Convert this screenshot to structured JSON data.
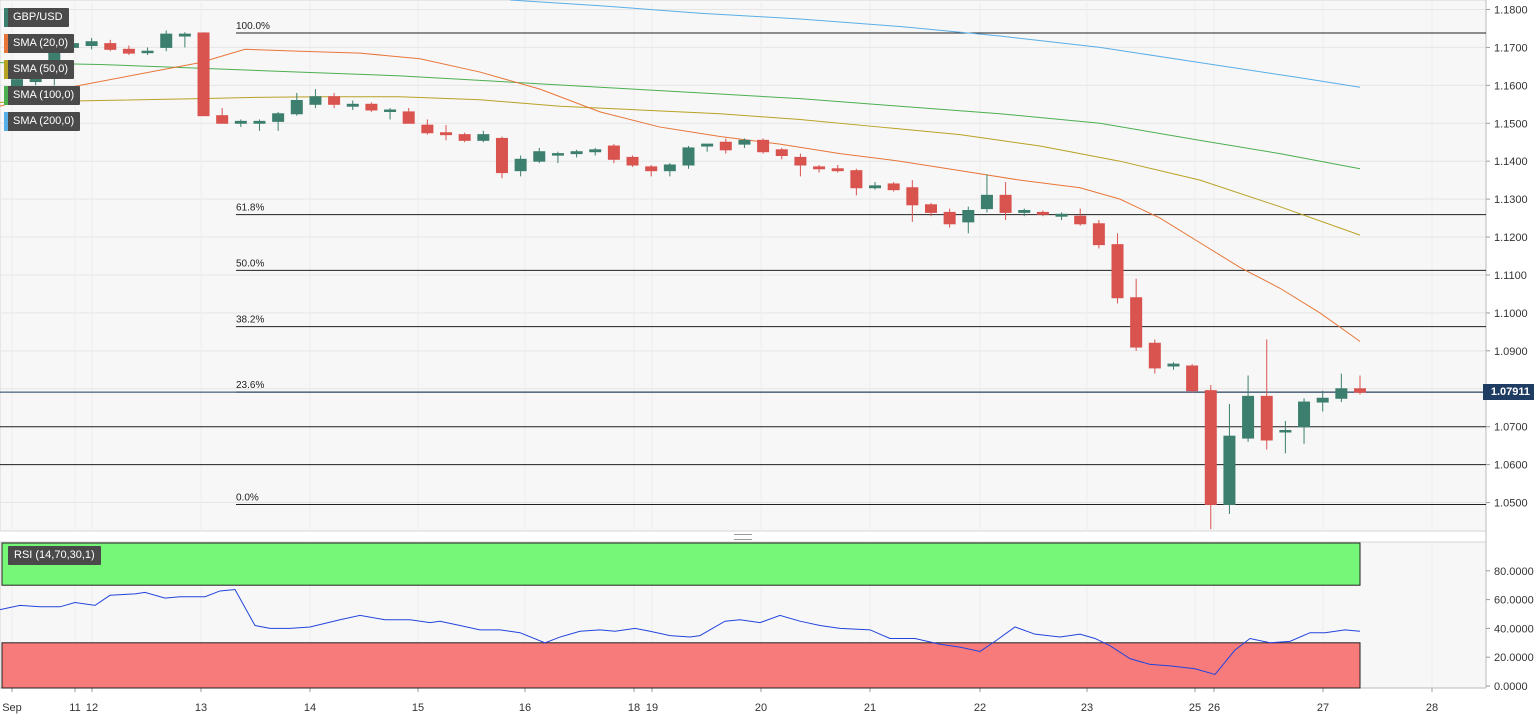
{
  "legend": [
    {
      "label": "GBP/USD",
      "color": "#3d7f6e"
    },
    {
      "label": "SMA (20,0)",
      "color": "#e8763a"
    },
    {
      "label": "SMA (50,0)",
      "color": "#b8a224"
    },
    {
      "label": "SMA (100,0)",
      "color": "#4caf50"
    },
    {
      "label": "SMA (200,0)",
      "color": "#5aaee8"
    }
  ],
  "rsi_label": "RSI (14,70,30,1)",
  "last_price": "1.07911",
  "colors": {
    "up": "#3d7f6e",
    "down": "#d9534f",
    "sma20": "#e8763a",
    "sma50": "#b8a224",
    "sma100": "#4caf50",
    "sma200": "#5aaee8",
    "rsi": "#2244dd",
    "overbought": "#77f777",
    "oversold": "#f87b7b",
    "price_tag": "#1f3d63"
  },
  "chart_data": [
    {
      "type": "candlestick",
      "title": "GBP/USD",
      "ylim": [
        1.0425,
        1.1825
      ],
      "grid": true,
      "x_labels": [
        "Sep",
        "11",
        "12",
        "13",
        "14",
        "15",
        "16",
        "18",
        "19",
        "20",
        "21",
        "22",
        "23",
        "25",
        "26",
        "27",
        "28"
      ],
      "y_ticks": [
        "1.1800",
        "1.1700",
        "1.1600",
        "1.1500",
        "1.1400",
        "1.1300",
        "1.1200",
        "1.1100",
        "1.1000",
        "1.0900",
        "1.0800",
        "1.0700",
        "1.0600",
        "1.0500"
      ],
      "fibonacci": [
        {
          "label": "100.0%",
          "value": 1.1738
        },
        {
          "label": "61.8%",
          "value": 1.1259
        },
        {
          "label": "50.0%",
          "value": 1.1112
        },
        {
          "label": "38.2%",
          "value": 1.0964
        },
        {
          "label": "23.6%",
          "value": 1.0791
        },
        {
          "label": "0.0%",
          "value": 1.0495
        }
      ],
      "extra_levels": [
        1.07,
        1.06
      ],
      "last_price": 1.07911,
      "candles": [
        [
          1.155,
          1.162,
          1.156,
          1.1615
        ],
        [
          1.161,
          1.1635,
          1.16,
          1.162
        ],
        [
          1.163,
          1.172,
          1.16,
          1.1705
        ],
        [
          1.17,
          1.172,
          1.169,
          1.171
        ],
        [
          1.1705,
          1.1725,
          1.1695,
          1.1715
        ],
        [
          1.171,
          1.172,
          1.169,
          1.1695
        ],
        [
          1.1695,
          1.1705,
          1.168,
          1.1685
        ],
        [
          1.169,
          1.17,
          1.168,
          1.169
        ],
        [
          1.17,
          1.1745,
          1.169,
          1.1735
        ],
        [
          1.173,
          1.174,
          1.17,
          1.1735
        ],
        [
          1.1738,
          1.174,
          1.152,
          1.152
        ],
        [
          1.152,
          1.154,
          1.15,
          1.15
        ],
        [
          1.15,
          1.151,
          1.149,
          1.1505
        ],
        [
          1.15,
          1.151,
          1.148,
          1.1505
        ],
        [
          1.1505,
          1.153,
          1.148,
          1.1525
        ],
        [
          1.1525,
          1.158,
          1.152,
          1.156
        ],
        [
          1.155,
          1.159,
          1.154,
          1.157
        ],
        [
          1.157,
          1.158,
          1.154,
          1.155
        ],
        [
          1.1545,
          1.156,
          1.1535,
          1.155
        ],
        [
          1.155,
          1.1555,
          1.153,
          1.1535
        ],
        [
          1.1535,
          1.154,
          1.151,
          1.1535
        ],
        [
          1.153,
          1.154,
          1.15,
          1.15
        ],
        [
          1.1495,
          1.151,
          1.147,
          1.1475
        ],
        [
          1.1475,
          1.1495,
          1.1455,
          1.147
        ],
        [
          1.147,
          1.1475,
          1.145,
          1.1455
        ],
        [
          1.1455,
          1.148,
          1.145,
          1.147
        ],
        [
          1.146,
          1.1465,
          1.1355,
          1.137
        ],
        [
          1.1375,
          1.1415,
          1.136,
          1.1405
        ],
        [
          1.14,
          1.1435,
          1.1395,
          1.1425
        ],
        [
          1.142,
          1.1425,
          1.1395,
          1.142
        ],
        [
          1.142,
          1.143,
          1.141,
          1.1425
        ],
        [
          1.1425,
          1.1435,
          1.1415,
          1.143
        ],
        [
          1.144,
          1.1445,
          1.1395,
          1.1405
        ],
        [
          1.141,
          1.1415,
          1.1385,
          1.139
        ],
        [
          1.1385,
          1.139,
          1.136,
          1.1375
        ],
        [
          1.1375,
          1.1395,
          1.136,
          1.139
        ],
        [
          1.139,
          1.144,
          1.138,
          1.1435
        ],
        [
          1.144,
          1.1445,
          1.1425,
          1.1445
        ],
        [
          1.145,
          1.146,
          1.142,
          1.143
        ],
        [
          1.1445,
          1.146,
          1.1435,
          1.1455
        ],
        [
          1.1455,
          1.146,
          1.142,
          1.1425
        ],
        [
          1.143,
          1.1435,
          1.1405,
          1.1415
        ],
        [
          1.141,
          1.142,
          1.136,
          1.139
        ],
        [
          1.1385,
          1.139,
          1.137,
          1.138
        ],
        [
          1.138,
          1.139,
          1.137,
          1.1375
        ],
        [
          1.1375,
          1.138,
          1.131,
          1.133
        ],
        [
          1.133,
          1.1345,
          1.1325,
          1.1335
        ],
        [
          1.134,
          1.1345,
          1.132,
          1.1325
        ],
        [
          1.133,
          1.135,
          1.124,
          1.1285
        ],
        [
          1.1285,
          1.129,
          1.1255,
          1.1265
        ],
        [
          1.1265,
          1.1275,
          1.1225,
          1.1235
        ],
        [
          1.124,
          1.128,
          1.121,
          1.127
        ],
        [
          1.1275,
          1.1365,
          1.1265,
          1.131
        ],
        [
          1.131,
          1.1345,
          1.1245,
          1.1265
        ],
        [
          1.1265,
          1.1275,
          1.1255,
          1.127
        ],
        [
          1.1265,
          1.127,
          1.1255,
          1.126
        ],
        [
          1.1255,
          1.1265,
          1.1245,
          1.126
        ],
        [
          1.1255,
          1.1275,
          1.123,
          1.1235
        ],
        [
          1.1235,
          1.1245,
          1.117,
          1.118
        ],
        [
          1.118,
          1.121,
          1.1025,
          1.104
        ],
        [
          1.104,
          1.109,
          1.09,
          1.091
        ],
        [
          1.092,
          1.093,
          1.084,
          1.0855
        ],
        [
          1.086,
          1.087,
          1.085,
          1.0865
        ],
        [
          1.086,
          1.0865,
          1.079,
          1.0795
        ],
        [
          1.0795,
          1.081,
          1.043,
          1.0495
        ],
        [
          1.0495,
          1.076,
          1.047,
          1.0675
        ],
        [
          1.067,
          1.0835,
          1.066,
          1.078
        ],
        [
          1.078,
          1.093,
          1.064,
          1.0665
        ],
        [
          1.069,
          1.0715,
          1.063,
          1.069
        ],
        [
          1.07,
          1.0775,
          1.0655,
          1.0765
        ],
        [
          1.0765,
          1.0795,
          1.074,
          1.0775
        ],
        [
          1.0775,
          1.084,
          1.0765,
          1.08
        ],
        [
          1.08,
          1.0835,
          1.0785,
          1.0791
        ]
      ],
      "sma20": [
        [
          0,
          1.1545
        ],
        [
          60,
          1.159
        ],
        [
          200,
          1.166
        ],
        [
          245,
          1.1695
        ],
        [
          300,
          1.169
        ],
        [
          360,
          1.1685
        ],
        [
          420,
          1.167
        ],
        [
          480,
          1.1635
        ],
        [
          540,
          1.159
        ],
        [
          600,
          1.153
        ],
        [
          660,
          1.149
        ],
        [
          720,
          1.1465
        ],
        [
          780,
          1.1445
        ],
        [
          840,
          1.142
        ],
        [
          900,
          1.14
        ],
        [
          960,
          1.1375
        ],
        [
          1020,
          1.135
        ],
        [
          1080,
          1.133
        ],
        [
          1120,
          1.13
        ],
        [
          1160,
          1.125
        ],
        [
          1200,
          1.1185
        ],
        [
          1240,
          1.112
        ],
        [
          1280,
          1.1065
        ],
        [
          1320,
          1.1
        ],
        [
          1360,
          1.0925
        ]
      ],
      "sma50": [
        [
          0,
          1.1555
        ],
        [
          100,
          1.156
        ],
        [
          200,
          1.1565
        ],
        [
          250,
          1.1568
        ],
        [
          320,
          1.157
        ],
        [
          400,
          1.157
        ],
        [
          480,
          1.1562
        ],
        [
          560,
          1.1545
        ],
        [
          640,
          1.1535
        ],
        [
          720,
          1.1525
        ],
        [
          800,
          1.151
        ],
        [
          880,
          1.149
        ],
        [
          960,
          1.147
        ],
        [
          1040,
          1.144
        ],
        [
          1120,
          1.14
        ],
        [
          1200,
          1.135
        ],
        [
          1280,
          1.128
        ],
        [
          1360,
          1.1205
        ]
      ],
      "sma100": [
        [
          0,
          1.166
        ],
        [
          100,
          1.1655
        ],
        [
          200,
          1.1645
        ],
        [
          300,
          1.1635
        ],
        [
          400,
          1.1625
        ],
        [
          500,
          1.161
        ],
        [
          600,
          1.1595
        ],
        [
          700,
          1.158
        ],
        [
          800,
          1.1565
        ],
        [
          900,
          1.1545
        ],
        [
          1000,
          1.1525
        ],
        [
          1100,
          1.15
        ],
        [
          1200,
          1.1455
        ],
        [
          1280,
          1.142
        ],
        [
          1360,
          1.138
        ]
      ],
      "sma200": [
        [
          510,
          1.1825
        ],
        [
          600,
          1.181
        ],
        [
          700,
          1.179
        ],
        [
          800,
          1.1775
        ],
        [
          900,
          1.1755
        ],
        [
          1000,
          1.173
        ],
        [
          1100,
          1.17
        ],
        [
          1200,
          1.166
        ],
        [
          1300,
          1.162
        ],
        [
          1360,
          1.1595
        ]
      ]
    },
    {
      "type": "line",
      "title": "RSI (14,70,30,1)",
      "ylim": [
        0,
        100
      ],
      "y_ticks": [
        "80.0000",
        "60.0000",
        "40.0000",
        "20.0000",
        "0.0000"
      ],
      "overbought": 70,
      "oversold": 30,
      "values": [
        [
          0,
          53
        ],
        [
          20,
          56
        ],
        [
          40,
          55
        ],
        [
          60,
          55
        ],
        [
          75,
          58
        ],
        [
          95,
          56
        ],
        [
          110,
          63
        ],
        [
          135,
          64
        ],
        [
          145,
          65
        ],
        [
          165,
          61
        ],
        [
          180,
          62
        ],
        [
          205,
          62
        ],
        [
          220,
          66
        ],
        [
          235,
          67
        ],
        [
          255,
          42
        ],
        [
          270,
          40
        ],
        [
          290,
          40
        ],
        [
          310,
          41
        ],
        [
          340,
          46
        ],
        [
          360,
          49
        ],
        [
          385,
          46
        ],
        [
          410,
          46
        ],
        [
          430,
          44
        ],
        [
          440,
          45
        ],
        [
          460,
          42
        ],
        [
          480,
          39
        ],
        [
          500,
          39
        ],
        [
          520,
          37
        ],
        [
          545,
          30
        ],
        [
          560,
          34
        ],
        [
          580,
          38
        ],
        [
          600,
          39
        ],
        [
          615,
          38
        ],
        [
          635,
          40
        ],
        [
          650,
          38
        ],
        [
          670,
          35
        ],
        [
          690,
          34
        ],
        [
          700,
          35
        ],
        [
          725,
          45
        ],
        [
          740,
          46
        ],
        [
          760,
          44
        ],
        [
          780,
          49
        ],
        [
          800,
          45
        ],
        [
          820,
          42
        ],
        [
          840,
          40
        ],
        [
          870,
          39
        ],
        [
          890,
          33
        ],
        [
          915,
          33
        ],
        [
          940,
          29
        ],
        [
          960,
          27
        ],
        [
          980,
          24
        ],
        [
          995,
          31
        ],
        [
          1015,
          41
        ],
        [
          1035,
          36
        ],
        [
          1060,
          34
        ],
        [
          1080,
          36
        ],
        [
          1095,
          33
        ],
        [
          1110,
          28
        ],
        [
          1130,
          19
        ],
        [
          1150,
          15
        ],
        [
          1170,
          14
        ],
        [
          1195,
          12
        ],
        [
          1215,
          8
        ],
        [
          1235,
          25
        ],
        [
          1250,
          33
        ],
        [
          1270,
          30
        ],
        [
          1290,
          31
        ],
        [
          1310,
          37
        ],
        [
          1325,
          37
        ],
        [
          1345,
          39
        ],
        [
          1360,
          38
        ]
      ]
    }
  ]
}
